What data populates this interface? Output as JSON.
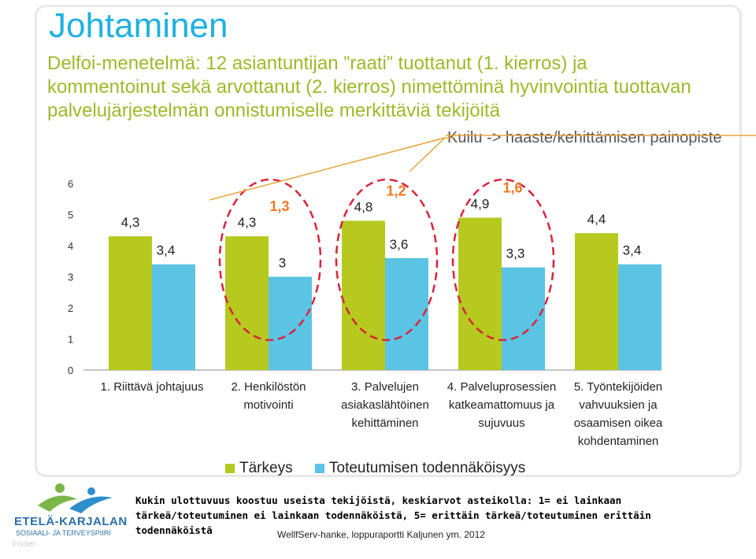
{
  "header": {
    "title": "Johtaminen",
    "subtitle": "Delfoi-menetelmä: 12 asiantuntijan ”raati” tuottanut (1. kierros) ja kommentoinut sekä arvottanut (2. kierros) nimettöminä hyvinvointia tuottavan palvelujärjestelmän onnistumiselle merkittäviä tekijöitä",
    "callout": "Kuilu -> haaste/kehittämisen painopiste"
  },
  "chart_data": {
    "type": "bar",
    "categories": [
      [
        "1. Riittävä johtajuus"
      ],
      [
        "2. Henkilöstön",
        "motivointi"
      ],
      [
        "3. Palvelujen",
        "asiakaslähtöinen",
        "kehittäminen"
      ],
      [
        "4. Palveluprosessien",
        "katkeamattomuus ja",
        "sujuvuus"
      ],
      [
        "5. Työntekijöiden",
        "vahvuuksien ja",
        "osaamisen oikea",
        "kohdentaminen"
      ]
    ],
    "series": [
      {
        "name": "Tärkeys",
        "values": [
          4.3,
          4.3,
          4.8,
          4.9,
          4.4
        ],
        "labels": [
          "4,3",
          "4,3",
          "4,8",
          "4,9",
          "4,4"
        ],
        "color": "#b5c91e"
      },
      {
        "name": "Toteutumisen todennäköisyys",
        "values": [
          3.4,
          3.0,
          3.6,
          3.3,
          3.4
        ],
        "labels": [
          "3,4",
          "3",
          "3,6",
          "3,3",
          "3,4"
        ],
        "color": "#5bc3e3"
      }
    ],
    "gaps": [
      {
        "category_index": 1,
        "label": "1,3"
      },
      {
        "category_index": 2,
        "label": "1,2"
      },
      {
        "category_index": 3,
        "label": "1,6"
      }
    ],
    "yticks": [
      "0",
      "1",
      "2",
      "3",
      "4",
      "5",
      "6"
    ],
    "ylim": [
      0,
      6
    ],
    "gap_color": "#f07820",
    "highlight_color": "#d9243a",
    "legend_position": "bottom"
  },
  "legend": {
    "items": [
      {
        "label": "Tärkeys",
        "color": "#b5c91e"
      },
      {
        "label": "Toteutumisen todennäköisyys",
        "color": "#5bc3e3"
      }
    ]
  },
  "footnote": "Kukin ulottuvuus koostuu useista tekijöistä, keskiarvot asteikolla: 1= ei lainkaan tärkeä/toteutuminen ei lainkaan todennäköistä, 5= erittäin tärkeä/toteutuminen erittäin todennäköistä",
  "source": "WellfServ-hanke, loppuraportti Kaljunen ym. 2012",
  "footer": "Footer",
  "logo": {
    "name": "ETELÄ-KARJALAN",
    "subname": "SOSIAALI- JA TERVEYSPIIRI"
  }
}
